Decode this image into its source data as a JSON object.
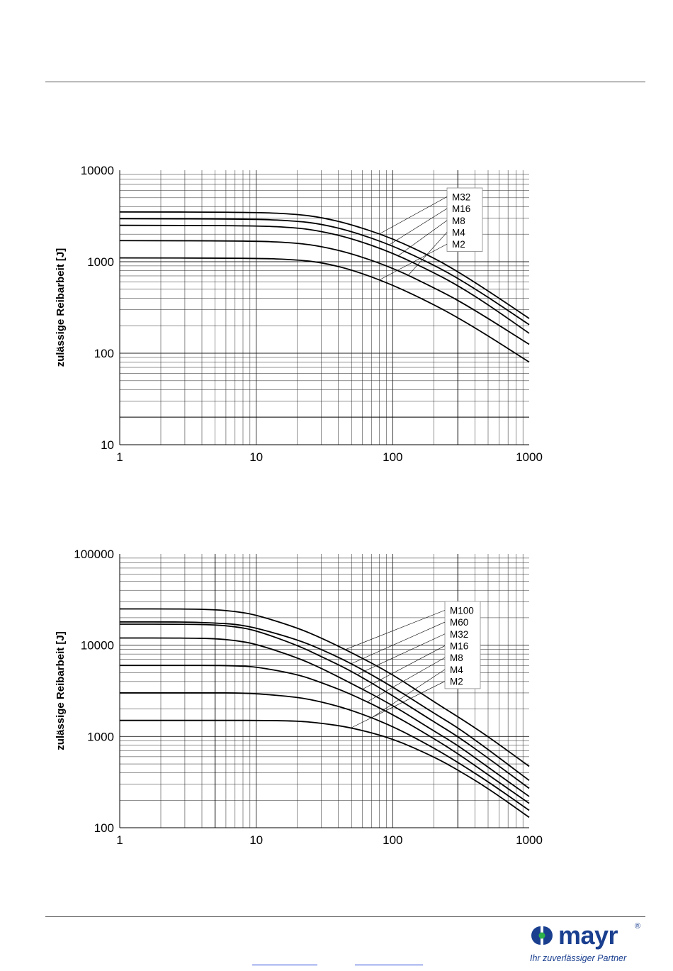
{
  "brand": {
    "name": "mayr",
    "registered": "®",
    "slogan": "Ihr zuverlässiger Partner",
    "color": "#1a3f8f",
    "accent": "#2fb24a"
  },
  "chart_data": [
    {
      "type": "line",
      "xscale": "log",
      "yscale": "log",
      "xlim": [
        1,
        1000
      ],
      "ylim": [
        10,
        10000
      ],
      "ylabel": "zulässige Reibarbeit [J]",
      "xlabel": "",
      "x_ticks": [
        "1",
        "10",
        "100",
        "1000"
      ],
      "y_ticks": [
        "10",
        "100",
        "1000",
        "10000"
      ],
      "grid": true,
      "legend_position": "top-right",
      "series": [
        {
          "name": "M32",
          "x": [
            1,
            10,
            20,
            30,
            50,
            100,
            200,
            300,
            500,
            1000
          ],
          "y": [
            3500,
            3480,
            3300,
            3050,
            2550,
            1800,
            1100,
            780,
            480,
            240
          ]
        },
        {
          "name": "M16",
          "x": [
            1,
            10,
            20,
            30,
            50,
            100,
            200,
            300,
            500,
            1000
          ],
          "y": [
            2950,
            2930,
            2780,
            2580,
            2150,
            1500,
            920,
            660,
            410,
            205
          ]
        },
        {
          "name": "M8",
          "x": [
            1,
            10,
            20,
            30,
            50,
            100,
            200,
            300,
            500,
            1000
          ],
          "y": [
            2500,
            2480,
            2350,
            2150,
            1800,
            1250,
            760,
            550,
            340,
            165
          ]
        },
        {
          "name": "M4",
          "x": [
            1,
            10,
            20,
            30,
            50,
            100,
            200,
            300,
            500,
            1000
          ],
          "y": [
            1700,
            1690,
            1600,
            1470,
            1230,
            860,
            520,
            380,
            240,
            125
          ]
        },
        {
          "name": "M2",
          "x": [
            1,
            10,
            20,
            30,
            50,
            100,
            200,
            300,
            500,
            1000
          ],
          "y": [
            1100,
            1095,
            1050,
            980,
            820,
            560,
            340,
            245,
            155,
            80
          ]
        }
      ]
    },
    {
      "type": "line",
      "xscale": "log",
      "yscale": "log",
      "xlim": [
        1,
        1000
      ],
      "ylim": [
        100,
        100000
      ],
      "ylabel": "zulässige Reibarbeit [J]",
      "xlabel": "",
      "x_ticks": [
        "1",
        "10",
        "100",
        "1000"
      ],
      "y_ticks": [
        "100",
        "1000",
        "10000",
        "100000"
      ],
      "grid": true,
      "legend_position": "top-right",
      "series": [
        {
          "name": "M100",
          "x": [
            1,
            3,
            5,
            7,
            10,
            20,
            30,
            50,
            100,
            200,
            300,
            500,
            1000
          ],
          "y": [
            25000,
            25000,
            24500,
            23500,
            21500,
            15500,
            12000,
            8300,
            4800,
            2400,
            1650,
            1000,
            470
          ]
        },
        {
          "name": "M60",
          "x": [
            1,
            3,
            5,
            7,
            10,
            20,
            30,
            50,
            100,
            200,
            300,
            500,
            1000
          ],
          "y": [
            18000,
            18000,
            17500,
            17000,
            15500,
            11500,
            9000,
            6300,
            3500,
            1800,
            1250,
            720,
            330
          ]
        },
        {
          "name": "M32",
          "x": [
            1,
            3,
            5,
            7,
            10,
            20,
            30,
            50,
            100,
            200,
            300,
            500,
            1000
          ],
          "y": [
            17000,
            17000,
            16700,
            16000,
            14500,
            10000,
            7500,
            5200,
            2800,
            1450,
            1000,
            580,
            270
          ]
        },
        {
          "name": "M16",
          "x": [
            1,
            3,
            5,
            7,
            10,
            20,
            30,
            50,
            100,
            200,
            300,
            500,
            1000
          ],
          "y": [
            12000,
            12000,
            11800,
            11300,
            10300,
            7300,
            5600,
            3800,
            2200,
            1150,
            800,
            460,
            220
          ]
        },
        {
          "name": "M8",
          "x": [
            1,
            3,
            5,
            7,
            10,
            20,
            30,
            50,
            100,
            200,
            300,
            500,
            1000
          ],
          "y": [
            6000,
            6000,
            6000,
            5950,
            5800,
            4800,
            3900,
            2900,
            1750,
            950,
            650,
            380,
            185
          ]
        },
        {
          "name": "M4",
          "x": [
            1,
            3,
            5,
            7,
            10,
            20,
            30,
            50,
            100,
            200,
            300,
            500,
            1000
          ],
          "y": [
            3000,
            3000,
            3000,
            3000,
            2950,
            2700,
            2400,
            1950,
            1300,
            750,
            520,
            320,
            155
          ]
        },
        {
          "name": "M2",
          "x": [
            1,
            3,
            5,
            7,
            10,
            20,
            30,
            50,
            100,
            200,
            300,
            500,
            1000
          ],
          "y": [
            1500,
            1500,
            1500,
            1500,
            1500,
            1480,
            1400,
            1250,
            950,
            600,
            430,
            270,
            130
          ]
        }
      ]
    }
  ]
}
